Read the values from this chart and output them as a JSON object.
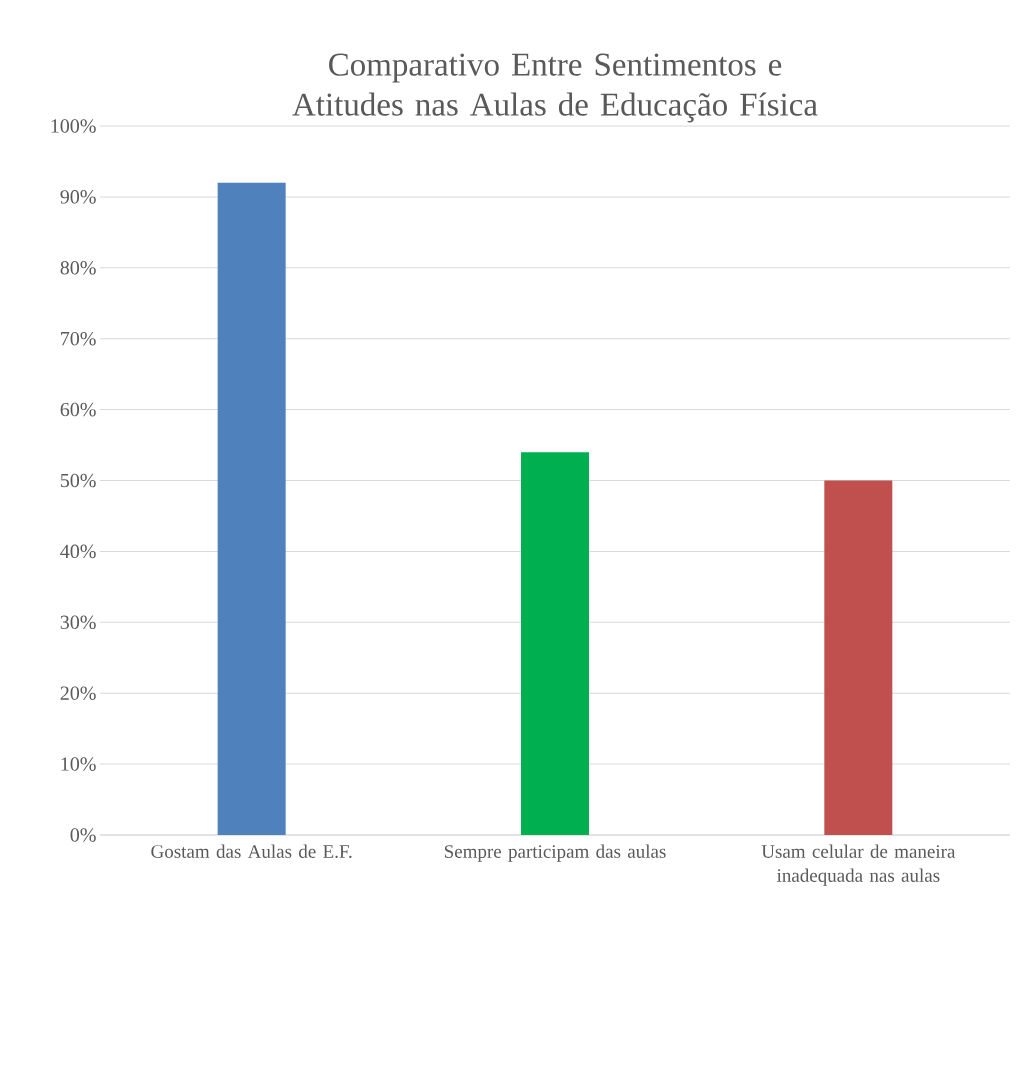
{
  "chart_data": {
    "type": "bar",
    "title": "Comparativo Entre Sentimentos e Atitudes nas Aulas de Educação Física",
    "categories": [
      "Gostam das Aulas de E.F.",
      "Sempre participam das aulas",
      "Usam celular de maneira inadequada nas aulas"
    ],
    "values": [
      92,
      54,
      50
    ],
    "colors": [
      "#4f81bd",
      "#00b050",
      "#c0504d"
    ],
    "ylim": [
      0,
      100
    ],
    "yticks": [
      {
        "value": 0,
        "label": "0%"
      },
      {
        "value": 10,
        "label": "10%"
      },
      {
        "value": 20,
        "label": "20%"
      },
      {
        "value": 30,
        "label": "30%"
      },
      {
        "value": 40,
        "label": "40%"
      },
      {
        "value": 50,
        "label": "50%"
      },
      {
        "value": 60,
        "label": "60%"
      },
      {
        "value": 70,
        "label": "70%"
      },
      {
        "value": 80,
        "label": "80%"
      },
      {
        "value": 90,
        "label": "90%"
      },
      {
        "value": 100,
        "label": "100%"
      }
    ],
    "grid": "y"
  }
}
